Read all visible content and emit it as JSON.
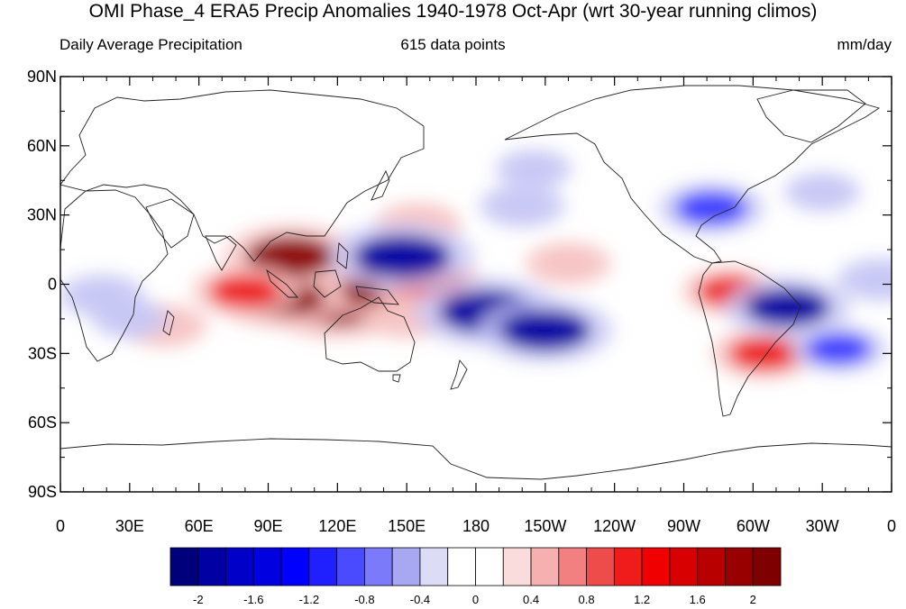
{
  "figure": {
    "title": "OMI Phase_4 ERA5 Precip Anomalies 1940-1978 Oct-Apr (wrt 30-year running climos)",
    "left_string": "Daily Average Precipitation",
    "center_string": "615 data points",
    "right_string": "mm/day"
  },
  "map": {
    "projection": "cylindrical-equidistant",
    "lon_range": [
      0,
      360
    ],
    "lat_range": [
      -90,
      90
    ],
    "y_ticks": [
      {
        "lat": 90,
        "label": "90N"
      },
      {
        "lat": 60,
        "label": "60N"
      },
      {
        "lat": 30,
        "label": "30N"
      },
      {
        "lat": 0,
        "label": "0"
      },
      {
        "lat": -30,
        "label": "30S"
      },
      {
        "lat": -60,
        "label": "60S"
      },
      {
        "lat": -90,
        "label": "90S"
      }
    ],
    "x_ticks": [
      {
        "lon": 0,
        "label": "0"
      },
      {
        "lon": 30,
        "label": "30E"
      },
      {
        "lon": 60,
        "label": "60E"
      },
      {
        "lon": 90,
        "label": "90E"
      },
      {
        "lon": 120,
        "label": "120E"
      },
      {
        "lon": 150,
        "label": "150E"
      },
      {
        "lon": 180,
        "label": "180"
      },
      {
        "lon": 210,
        "label": "150W"
      },
      {
        "lon": 240,
        "label": "120W"
      },
      {
        "lon": 270,
        "label": "90W"
      },
      {
        "lon": 300,
        "label": "60W"
      },
      {
        "lon": 330,
        "label": "30W"
      },
      {
        "lon": 360,
        "label": "0"
      }
    ],
    "colors": {
      "strong_negative": "#0000a0",
      "negative": "#3b3bff",
      "weak_negative": "#c8c8f5",
      "weak_positive": "#f7c4c4",
      "positive": "#ee2020",
      "strong_positive": "#8b0000",
      "coast": "#222222"
    },
    "anomalies": [
      {
        "lon": 120,
        "lat": -8,
        "value": 2.2
      },
      {
        "lon": 95,
        "lat": -5,
        "value": 1.8
      },
      {
        "lon": 100,
        "lat": 12,
        "value": 1.8
      },
      {
        "lon": 140,
        "lat": -2,
        "value": 1.6
      },
      {
        "lon": 160,
        "lat": 0,
        "value": 1.2
      },
      {
        "lon": 80,
        "lat": -3,
        "value": 1.2
      },
      {
        "lon": 150,
        "lat": -14,
        "value": 0.8
      },
      {
        "lon": 220,
        "lat": 9,
        "value": 0.8
      },
      {
        "lon": 155,
        "lat": 26,
        "value": 0.8
      },
      {
        "lon": 305,
        "lat": -30,
        "value": 1.2
      },
      {
        "lon": 290,
        "lat": -3,
        "value": 1.0
      },
      {
        "lon": 45,
        "lat": -18,
        "value": 0.8
      },
      {
        "lon": 148,
        "lat": 12,
        "value": -2.0
      },
      {
        "lon": 185,
        "lat": -12,
        "value": -2.0
      },
      {
        "lon": 210,
        "lat": -20,
        "value": -1.8
      },
      {
        "lon": 315,
        "lat": -10,
        "value": -1.6
      },
      {
        "lon": 282,
        "lat": 33,
        "value": -1.2
      },
      {
        "lon": 18,
        "lat": -5,
        "value": -0.8
      },
      {
        "lon": 30,
        "lat": -15,
        "value": -0.6
      },
      {
        "lon": 200,
        "lat": 34,
        "value": -0.8
      },
      {
        "lon": 355,
        "lat": 2,
        "value": -0.8
      },
      {
        "lon": 337,
        "lat": -28,
        "value": -1.0
      },
      {
        "lon": 330,
        "lat": 40,
        "value": -0.6
      },
      {
        "lon": 205,
        "lat": 50,
        "value": -0.6
      }
    ]
  },
  "colorbar": {
    "colors": [
      "#00007a",
      "#0000a3",
      "#0000c8",
      "#0000e0",
      "#0000ff",
      "#2020ff",
      "#4a4aff",
      "#7a7afa",
      "#a8a8f2",
      "#dcdcf7",
      "#ffffff",
      "#ffffff",
      "#fadcdc",
      "#f7b0b0",
      "#f28080",
      "#ee4b4b",
      "#f01c1c",
      "#f00000",
      "#d80000",
      "#b80000",
      "#980000",
      "#7f0000"
    ],
    "labels": [
      "-2",
      "-1.6",
      "-1.2",
      "-0.8",
      "-0.4",
      "0",
      "0.4",
      "0.8",
      "1.2",
      "1.6",
      "2"
    ]
  }
}
